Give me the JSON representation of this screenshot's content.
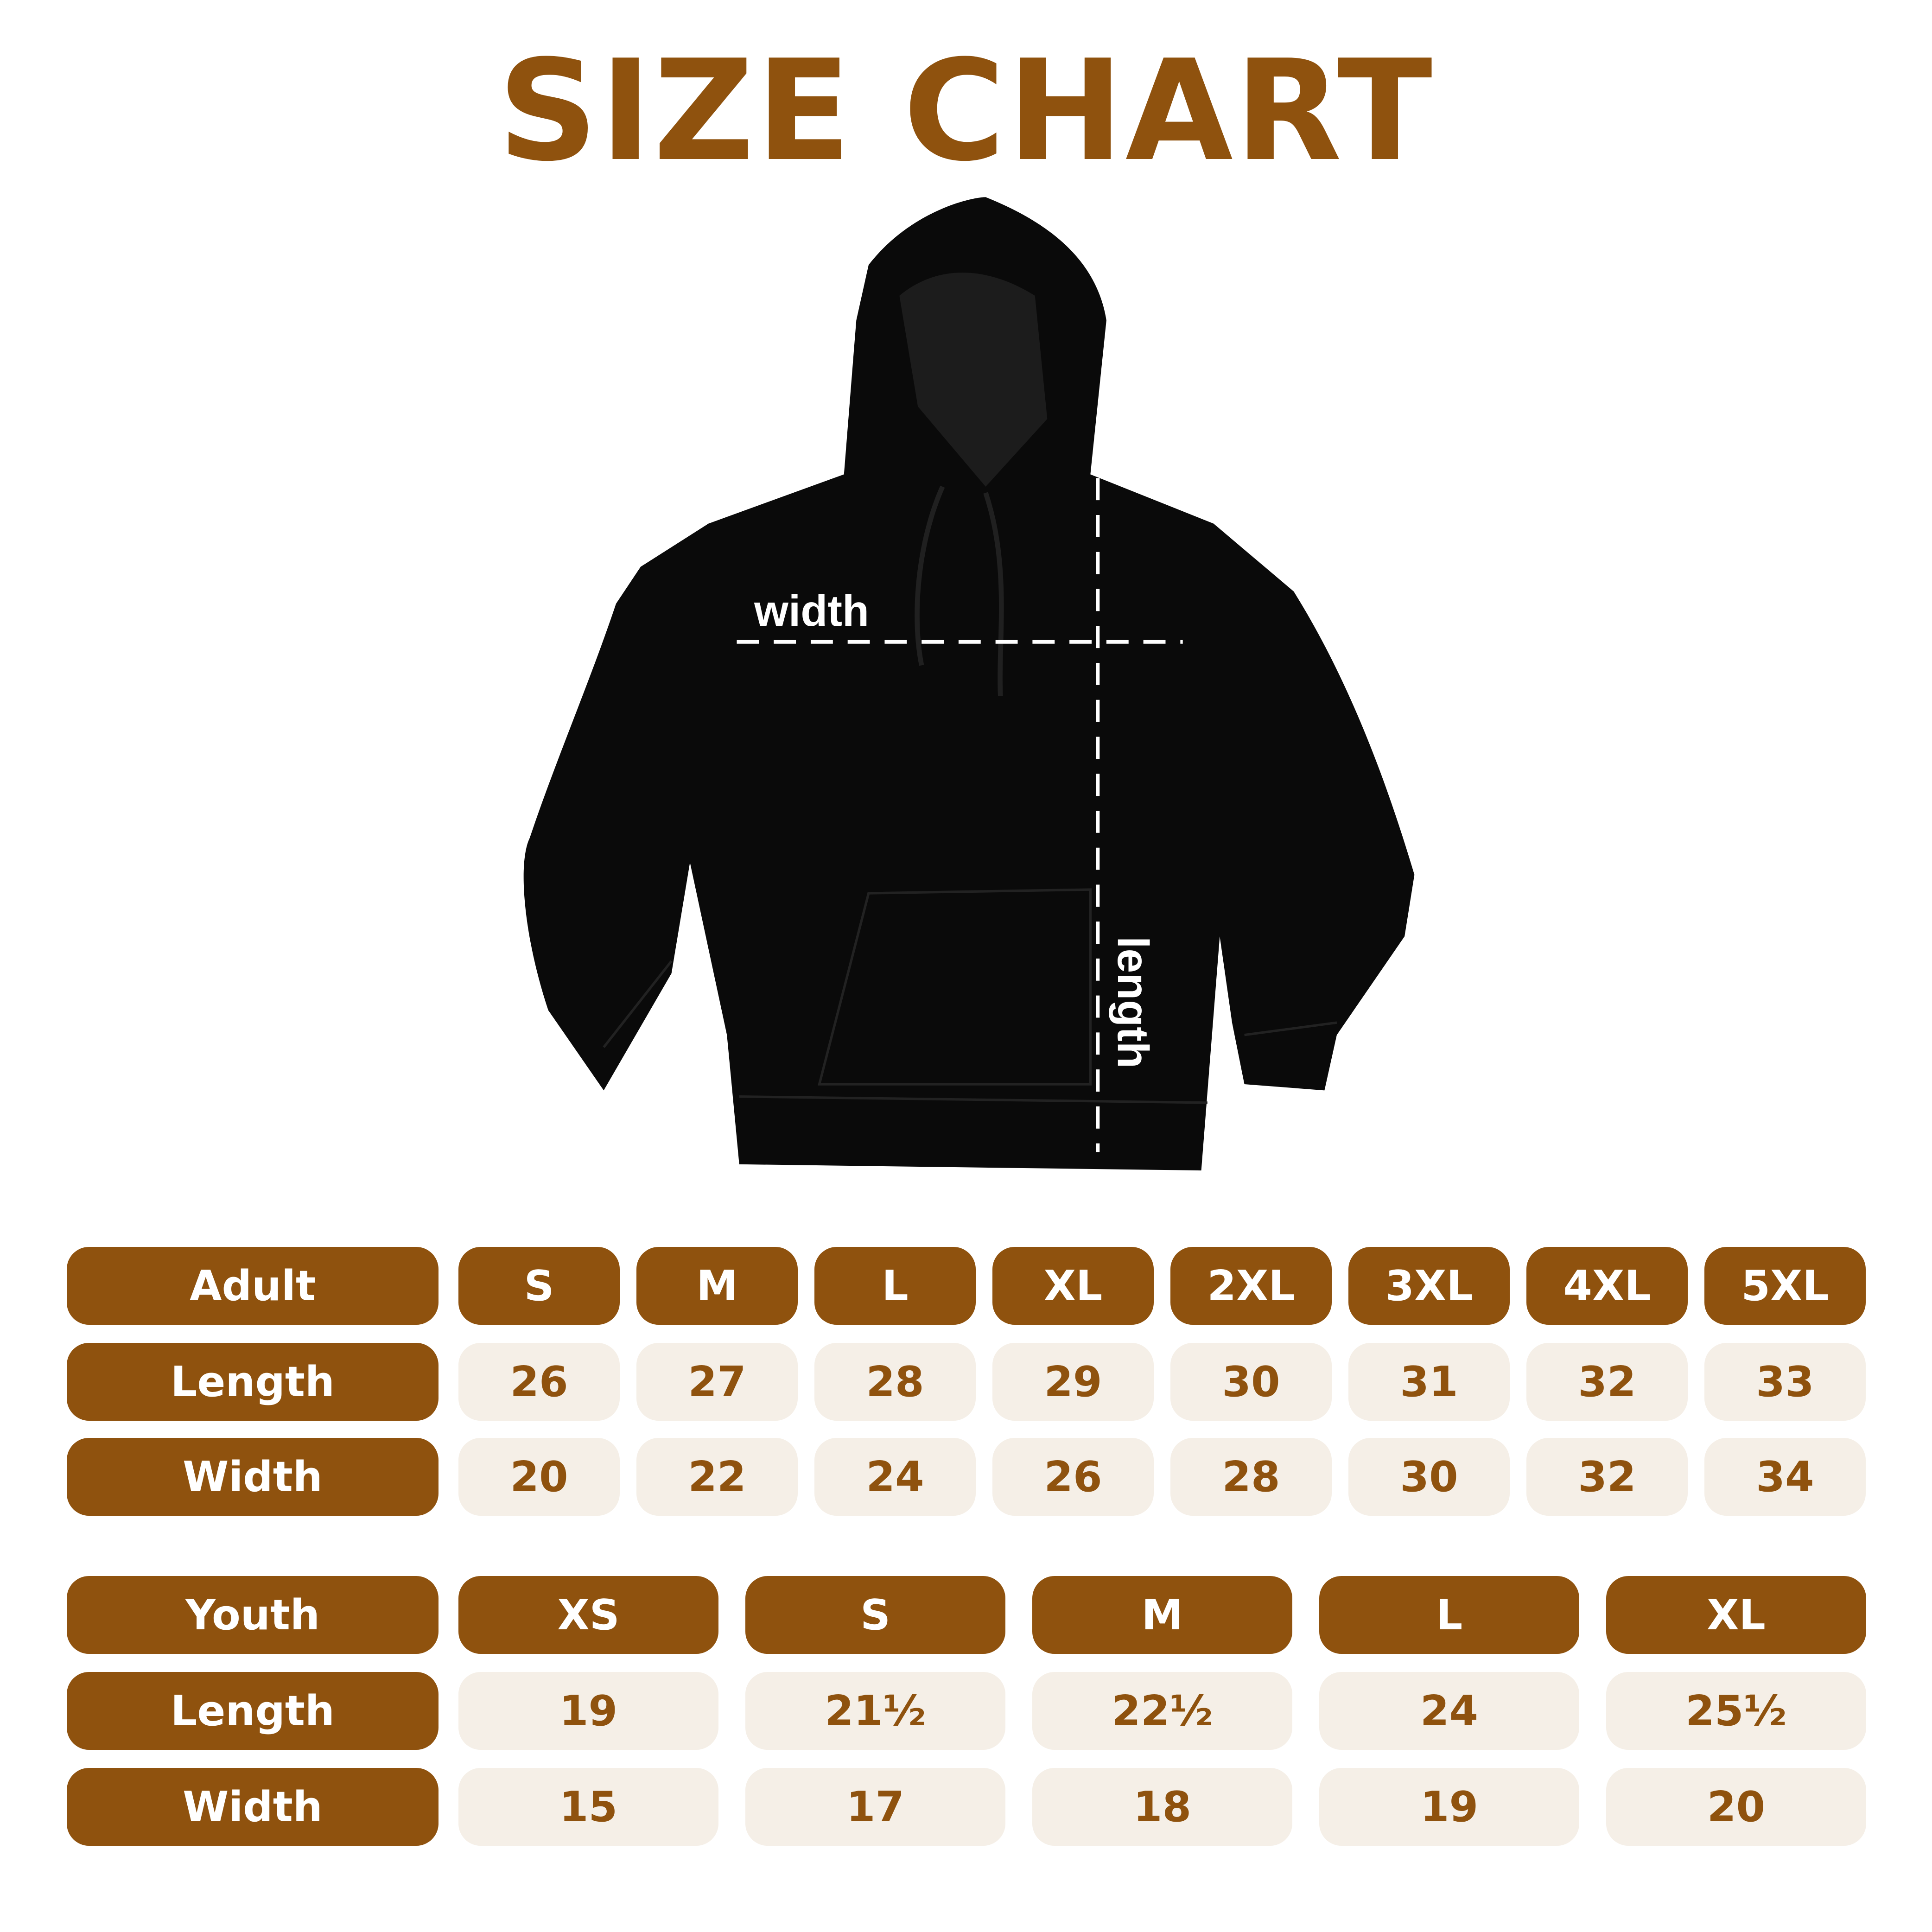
{
  "title": "SIZE CHART",
  "colors": {
    "brand": "#8f520e",
    "cell_bg": "#f5efe7"
  },
  "diagram": {
    "width_label": "width",
    "length_label": "length"
  },
  "adult": {
    "header": "Adult",
    "sizes": [
      "S",
      "M",
      "L",
      "XL",
      "2XL",
      "3XL",
      "4XL",
      "5XL"
    ],
    "length_label": "Length",
    "length": [
      "26",
      "27",
      "28",
      "29",
      "30",
      "31",
      "32",
      "33"
    ],
    "width_label": "Width",
    "width": [
      "20",
      "22",
      "24",
      "26",
      "28",
      "30",
      "32",
      "34"
    ]
  },
  "youth": {
    "header": "Youth",
    "sizes": [
      "XS",
      "S",
      "M",
      "L",
      "XL"
    ],
    "length_label": "Length",
    "length": [
      "19",
      "21½",
      "22½",
      "24",
      "25½"
    ],
    "width_label": "Width",
    "width": [
      "15",
      "17",
      "18",
      "19",
      "20"
    ]
  }
}
